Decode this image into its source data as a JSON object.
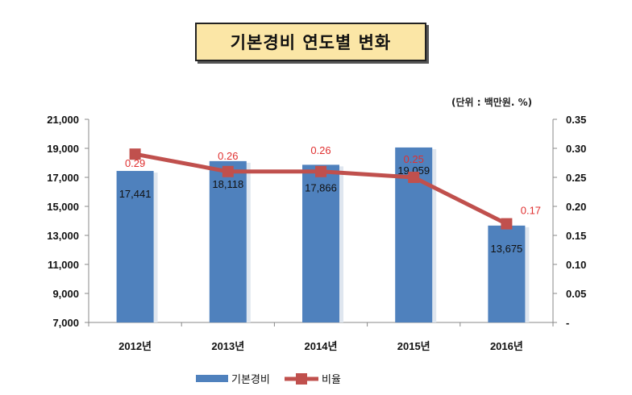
{
  "title": "기본경비 연도별 변화",
  "unit_note": "(단위 : 백만원. %)",
  "chart_data": {
    "type": "bar",
    "categories": [
      "2012년",
      "2013년",
      "2014년",
      "2015년",
      "2016년"
    ],
    "series": [
      {
        "name": "기본경비",
        "type": "bar",
        "axis": "left",
        "color": "#4f81bd",
        "values": [
          17441,
          18118,
          17866,
          19059,
          13675
        ],
        "labels": [
          "17,441",
          "18,118",
          "17,866",
          "19,059",
          "13,675"
        ]
      },
      {
        "name": "비율",
        "type": "line",
        "axis": "right",
        "color": "#c0504d",
        "values": [
          0.29,
          0.26,
          0.26,
          0.25,
          0.17
        ],
        "labels": [
          "0.29",
          "0.26",
          "0.26",
          "0.25",
          "0.17"
        ]
      }
    ],
    "y_left": {
      "min": 7000,
      "max": 21000,
      "ticks": [
        "7,000",
        "9,000",
        "11,000",
        "13,000",
        "15,000",
        "17,000",
        "19,000",
        "21,000"
      ]
    },
    "y_right": {
      "min": 0,
      "max": 0.35,
      "ticks": [
        "-",
        "0.05",
        "0.10",
        "0.15",
        "0.20",
        "0.25",
        "0.30",
        "0.35"
      ]
    },
    "legend_position": "bottom",
    "grid": false
  }
}
